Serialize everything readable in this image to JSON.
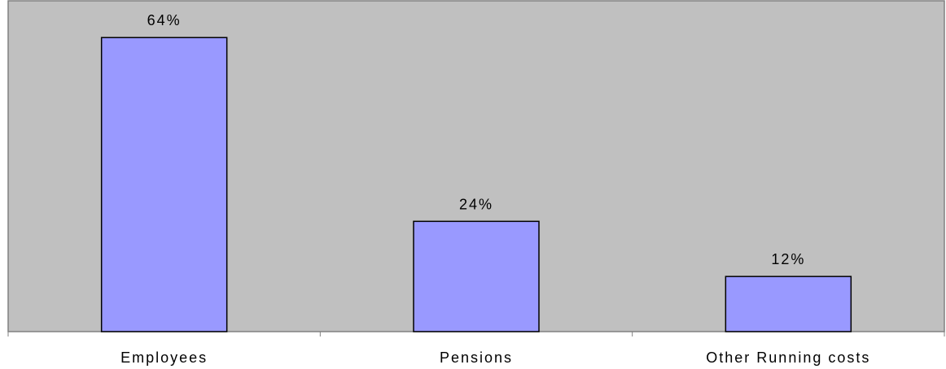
{
  "chart_data": {
    "type": "bar",
    "categories": [
      "Employees",
      "Pensions",
      "Other Running costs"
    ],
    "values": [
      64,
      24,
      12
    ],
    "data_labels": [
      "64%",
      "24%",
      "12%"
    ],
    "title": "",
    "xlabel": "",
    "ylabel": "",
    "ylim": [
      0,
      72
    ],
    "grid": false,
    "legend": "none",
    "colors": {
      "plot_background": "#c0c0c0",
      "bar_fill": "#9999ff",
      "bar_stroke": "#000000",
      "axis": "#808080"
    }
  }
}
